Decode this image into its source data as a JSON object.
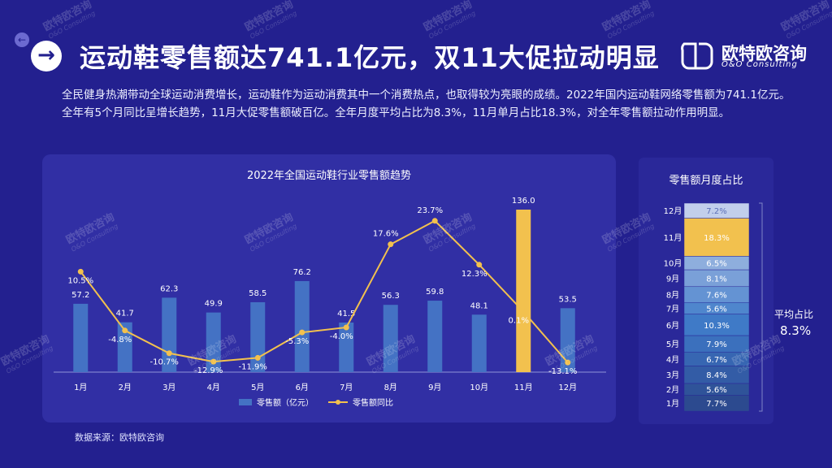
{
  "header": {
    "title": "运动鞋零售额达741.1亿元，双11大促拉动明显",
    "logo_cn": "欧特欧咨询",
    "logo_en": "O&O Consulting"
  },
  "summary": "全民健身热潮带动全球运动消费增长，运动鞋作为运动消费其中一个消费热点，也取得较为亮眼的成绩。2022年国内运动鞋网络零售额为741.1亿元。全年有5个月同比呈增长趋势，11月大促零售额破百亿。全年月度平均占比为8.3%，11月单月占比18.3%，对全年零售额拉动作用明显。",
  "source": "数据来源：欧特欧咨询",
  "watermark": {
    "cn": "欧特欧咨询",
    "en": "O&O Consulting"
  },
  "colors": {
    "background": "#23208f",
    "bar": "#4472c4",
    "highlight": "#f2c14e",
    "line": "#f2c14e"
  },
  "chart_data": [
    {
      "type": "bar",
      "title": "2022年全国运动鞋行业零售额趋势",
      "categories": [
        "1月",
        "2月",
        "3月",
        "4月",
        "5月",
        "6月",
        "7月",
        "8月",
        "9月",
        "10月",
        "11月",
        "12月"
      ],
      "series": [
        {
          "name": "零售额（亿元）",
          "type": "bar",
          "values": [
            57.2,
            41.7,
            62.3,
            49.9,
            58.5,
            76.2,
            41.5,
            56.3,
            59.8,
            48.1,
            136.0,
            53.5
          ],
          "labels": [
            "57.2",
            "41.7",
            "62.3",
            "49.9",
            "58.5",
            "76.2",
            "41.5",
            "56.3",
            "59.8",
            "48.1",
            "136.0",
            "53.5"
          ],
          "highlight_index": 10
        },
        {
          "name": "零售额同比",
          "type": "line",
          "values": [
            10.5,
            -4.8,
            -10.7,
            -12.9,
            -11.9,
            -5.3,
            -4.0,
            17.6,
            23.7,
            12.3,
            0.1,
            -13.1
          ],
          "labels": [
            "10.5%",
            "-4.8%",
            "-10.7%",
            "-12.9%",
            "-11.9%",
            "-5.3%",
            "-4.0%",
            "17.6%",
            "23.7%",
            "12.3%",
            "0.1%",
            "-13.1%"
          ]
        }
      ],
      "legend": "bottom",
      "grid": false
    },
    {
      "type": "bar",
      "stacked": true,
      "title": "零售额月度占比",
      "categories": [
        "1月",
        "2月",
        "3月",
        "4月",
        "5月",
        "6月",
        "7月",
        "8月",
        "9月",
        "10月",
        "11月",
        "12月"
      ],
      "values": [
        7.7,
        5.6,
        8.4,
        6.7,
        7.9,
        10.3,
        5.6,
        7.6,
        8.1,
        6.5,
        18.3,
        7.2
      ],
      "labels": [
        "7.7%",
        "5.6%",
        "8.4%",
        "6.7%",
        "7.9%",
        "10.3%",
        "5.6%",
        "7.6%",
        "8.1%",
        "6.5%",
        "18.3%",
        "7.2%"
      ],
      "highlight_index": 10,
      "annotation": {
        "label": "平均占比",
        "value": "8.3%"
      }
    }
  ]
}
